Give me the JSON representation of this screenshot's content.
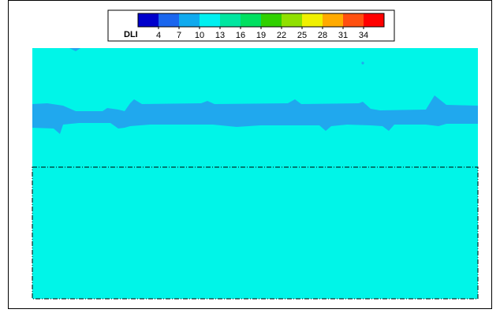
{
  "chart_data": {
    "type": "heatmap",
    "colorbar": {
      "label": "DLI",
      "ticks": [
        "4",
        "7",
        "10",
        "13",
        "16",
        "19",
        "22",
        "25",
        "28",
        "31",
        "34"
      ],
      "colors": [
        "#0000cc",
        "#1a66ee",
        "#10aaee",
        "#00f0f0",
        "#00e6a0",
        "#00e060",
        "#30d000",
        "#90e000",
        "#f0f000",
        "#ffaa00",
        "#ff5010",
        "#ff0000"
      ]
    },
    "field": {
      "background_level": "10-13",
      "background_color": "#00f5e8",
      "band_level": "7-10",
      "band_color": "#20a8ee"
    },
    "domain_boundary": "dash-dot"
  }
}
